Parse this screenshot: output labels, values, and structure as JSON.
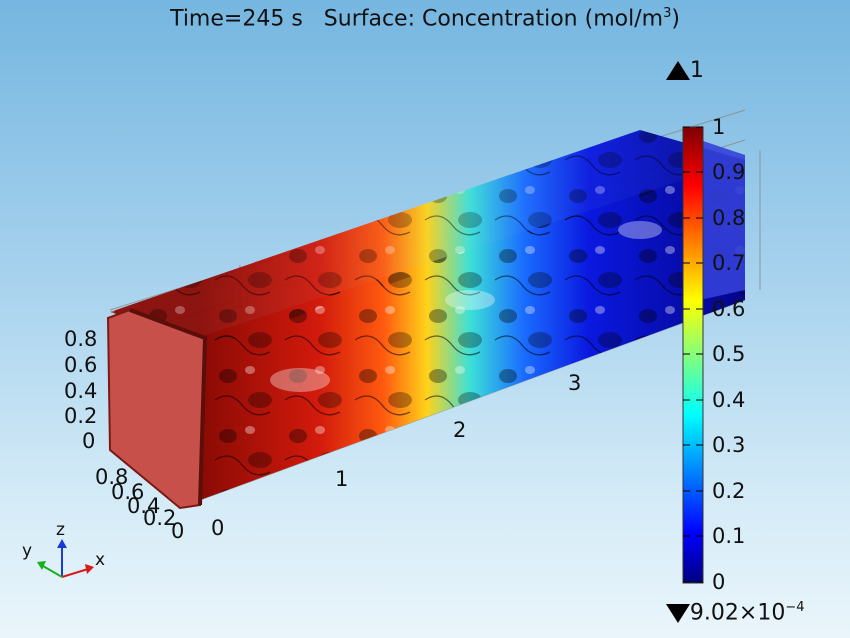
{
  "plot": {
    "title_time": "Time=245 s",
    "title_surface": "Surface: Concentration (mol/m",
    "title_exp": "3",
    "title_close": ")"
  },
  "colorbar": {
    "max_label": "1",
    "min_mantissa": "9.02×10",
    "min_exp": "−4",
    "ticks": [
      "1",
      "0.9",
      "0.8",
      "0.7",
      "0.6",
      "0.5",
      "0.4",
      "0.3",
      "0.2",
      "0.1",
      "0"
    ],
    "colors": [
      "#00007f",
      "#0000ff",
      "#00ffff",
      "#ffff00",
      "#ff0000",
      "#7f0000"
    ]
  },
  "axes": {
    "z_ticks": [
      "0.8",
      "0.6",
      "0.4",
      "0.2",
      "0"
    ],
    "y_ticks": [
      "0.8",
      "0.6",
      "0.4",
      "0.2",
      "0"
    ],
    "x_ticks": [
      "0",
      "1",
      "2",
      "3"
    ],
    "triad": {
      "x": "x",
      "y": "y",
      "z": "z"
    }
  }
}
